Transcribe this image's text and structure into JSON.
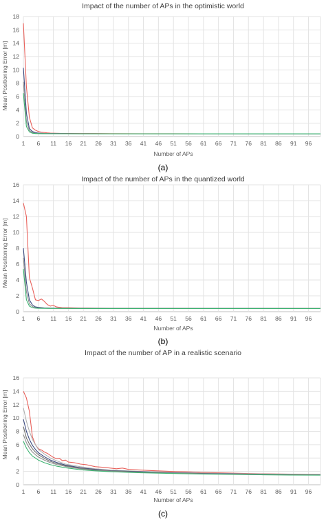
{
  "chart_data": [
    {
      "type": "line",
      "panel": "(a)",
      "title": "Impact of the number of APs in the optimistic world",
      "xlabel": "Number of APs",
      "ylabel": "Mean Positioning Error [m]",
      "xlim": [
        1,
        100
      ],
      "ylim": [
        0,
        18
      ],
      "ytick_step": 2,
      "xticks": [
        "1",
        "6",
        "11",
        "16",
        "21",
        "26",
        "31",
        "36",
        "41",
        "46",
        "51",
        "56",
        "61",
        "66",
        "71",
        "76",
        "81",
        "86",
        "91",
        "96"
      ],
      "grid": true,
      "series": [
        {
          "color": "#e8605a",
          "x": [
            1,
            2,
            3,
            4,
            5,
            6,
            7,
            8,
            9,
            10,
            12,
            14,
            16,
            20,
            25,
            30,
            40,
            50,
            60,
            70,
            80,
            90,
            100
          ],
          "y": [
            17,
            7.5,
            2.9,
            1.3,
            0.95,
            0.75,
            0.65,
            0.6,
            0.55,
            0.52,
            0.49,
            0.47,
            0.46,
            0.45,
            0.44,
            0.43,
            0.42,
            0.42,
            0.41,
            0.41,
            0.41,
            0.41,
            0.41
          ]
        },
        {
          "color": "#3b4a80",
          "x": [
            1,
            2,
            3,
            4,
            5,
            6,
            8,
            10,
            15,
            20,
            30,
            50,
            100
          ],
          "y": [
            10.3,
            3.5,
            1.2,
            0.75,
            0.6,
            0.52,
            0.47,
            0.45,
            0.43,
            0.42,
            0.41,
            0.41,
            0.4
          ]
        },
        {
          "color": "#8c8c8c",
          "x": [
            1,
            2,
            3,
            4,
            5,
            6,
            8,
            10,
            15,
            20,
            30,
            50,
            100
          ],
          "y": [
            8.2,
            2.3,
            0.9,
            0.6,
            0.5,
            0.47,
            0.44,
            0.43,
            0.42,
            0.41,
            0.41,
            0.4,
            0.4
          ]
        },
        {
          "color": "#3cb371",
          "x": [
            1,
            2,
            3,
            4,
            5,
            6,
            8,
            10,
            15,
            20,
            30,
            50,
            100
          ],
          "y": [
            6.5,
            1.5,
            0.7,
            0.5,
            0.45,
            0.43,
            0.42,
            0.41,
            0.41,
            0.4,
            0.4,
            0.4,
            0.4
          ]
        }
      ]
    },
    {
      "type": "line",
      "panel": "(b)",
      "title": "Impact of the number of APs in the quantized world",
      "xlabel": "Number of APs",
      "ylabel": "Mean Positioning Error [m]",
      "xlim": [
        1,
        100
      ],
      "ylim": [
        0,
        16
      ],
      "ytick_step": 2,
      "xticks": [
        "1",
        "6",
        "11",
        "16",
        "21",
        "26",
        "31",
        "36",
        "41",
        "46",
        "51",
        "56",
        "61",
        "66",
        "71",
        "76",
        "81",
        "86",
        "91",
        "96"
      ],
      "grid": true,
      "series": [
        {
          "color": "#e8605a",
          "x": [
            1,
            2,
            3,
            4,
            5,
            6,
            7,
            8,
            9,
            10,
            11,
            12,
            14,
            16,
            20,
            25,
            30,
            40,
            50,
            60,
            70,
            80,
            90,
            100
          ],
          "y": [
            13.7,
            12,
            4.3,
            3,
            1.5,
            1.4,
            1.6,
            1.3,
            0.9,
            0.7,
            0.8,
            0.6,
            0.5,
            0.5,
            0.45,
            0.44,
            0.43,
            0.42,
            0.42,
            0.41,
            0.41,
            0.41,
            0.41,
            0.41
          ]
        },
        {
          "color": "#3b4a80",
          "x": [
            1,
            2,
            3,
            4,
            5,
            6,
            8,
            10,
            15,
            20,
            30,
            50,
            100
          ],
          "y": [
            8,
            3.7,
            1.5,
            0.85,
            0.6,
            0.55,
            0.48,
            0.45,
            0.43,
            0.42,
            0.41,
            0.41,
            0.4
          ]
        },
        {
          "color": "#8c8c8c",
          "x": [
            1,
            2,
            3,
            4,
            5,
            6,
            8,
            10,
            15,
            20,
            30,
            50,
            100
          ],
          "y": [
            6.8,
            2.5,
            1.0,
            0.65,
            0.5,
            0.47,
            0.44,
            0.43,
            0.42,
            0.41,
            0.41,
            0.4,
            0.4
          ]
        },
        {
          "color": "#3cb371",
          "x": [
            1,
            2,
            3,
            4,
            5,
            6,
            8,
            10,
            15,
            20,
            30,
            50,
            100
          ],
          "y": [
            5.4,
            1.5,
            0.7,
            0.5,
            0.45,
            0.43,
            0.42,
            0.41,
            0.41,
            0.4,
            0.4,
            0.4,
            0.4
          ]
        }
      ]
    },
    {
      "type": "line",
      "panel": "(c)",
      "title": "Impact of the number of AP in a realistic scenario",
      "xlabel": "Number of APs",
      "ylabel": "Mean Positioning Error [m]",
      "xlim": [
        1,
        100
      ],
      "ylim": [
        0,
        16
      ],
      "ytick_step": 2,
      "xticks": [
        "1",
        "6",
        "11",
        "16",
        "21",
        "26",
        "31",
        "36",
        "41",
        "46",
        "51",
        "56",
        "61",
        "66",
        "71",
        "76",
        "81",
        "86",
        "91",
        "96"
      ],
      "grid": true,
      "series": [
        {
          "color": "#e8605a",
          "x": [
            1,
            2,
            3,
            4,
            5,
            6,
            7,
            8,
            9,
            10,
            11,
            12,
            13,
            14,
            15,
            16,
            18,
            20,
            22,
            25,
            28,
            30,
            32,
            34,
            36,
            40,
            45,
            50,
            55,
            60,
            70,
            80,
            90,
            100
          ],
          "y": [
            14,
            13,
            11,
            7.2,
            6,
            5.4,
            5.2,
            4.9,
            4.7,
            4.4,
            4.1,
            3.9,
            3.95,
            3.6,
            3.7,
            3.4,
            3.3,
            3.1,
            3,
            2.7,
            2.6,
            2.5,
            2.4,
            2.5,
            2.3,
            2.2,
            2.1,
            2.0,
            1.95,
            1.85,
            1.75,
            1.65,
            1.6,
            1.55
          ]
        },
        {
          "color": "#b0b0b0",
          "x": [
            1,
            2,
            3,
            4,
            5,
            6,
            8,
            10,
            12,
            15,
            20,
            25,
            30,
            40,
            50,
            60,
            70,
            80,
            90,
            100
          ],
          "y": [
            11.5,
            9.5,
            8,
            6.8,
            6,
            5.3,
            4.6,
            4,
            3.6,
            3.1,
            2.7,
            2.4,
            2.2,
            2.0,
            1.85,
            1.75,
            1.68,
            1.62,
            1.57,
            1.52
          ]
        },
        {
          "color": "#3b4a80",
          "x": [
            1,
            2,
            3,
            4,
            5,
            6,
            8,
            10,
            12,
            15,
            20,
            25,
            30,
            40,
            50,
            60,
            70,
            80,
            90,
            100
          ],
          "y": [
            9.8,
            8,
            6.8,
            5.9,
            5.3,
            4.8,
            4.2,
            3.7,
            3.35,
            2.95,
            2.55,
            2.3,
            2.12,
            1.95,
            1.8,
            1.7,
            1.63,
            1.57,
            1.52,
            1.48
          ]
        },
        {
          "color": "#6e6e6e",
          "x": [
            1,
            2,
            3,
            4,
            5,
            6,
            8,
            10,
            12,
            15,
            20,
            25,
            30,
            40,
            50,
            60,
            70,
            80,
            90,
            100
          ],
          "y": [
            8.7,
            7,
            6.1,
            5.4,
            4.9,
            4.5,
            3.95,
            3.5,
            3.2,
            2.85,
            2.47,
            2.24,
            2.07,
            1.9,
            1.76,
            1.67,
            1.6,
            1.55,
            1.5,
            1.46
          ]
        },
        {
          "color": "#8c8c8c",
          "x": [
            1,
            2,
            3,
            4,
            5,
            6,
            8,
            10,
            12,
            15,
            20,
            25,
            30,
            40,
            50,
            60,
            70,
            80,
            90,
            100
          ],
          "y": [
            7.5,
            6.3,
            5.5,
            4.9,
            4.5,
            4.15,
            3.7,
            3.3,
            3.05,
            2.75,
            2.4,
            2.18,
            2.03,
            1.87,
            1.74,
            1.65,
            1.58,
            1.53,
            1.49,
            1.45
          ]
        },
        {
          "color": "#3cb371",
          "x": [
            1,
            2,
            3,
            4,
            5,
            6,
            8,
            10,
            12,
            15,
            20,
            25,
            30,
            40,
            50,
            60,
            70,
            80,
            90,
            100
          ],
          "y": [
            6.5,
            5.5,
            4.8,
            4.3,
            4,
            3.7,
            3.3,
            3.0,
            2.8,
            2.55,
            2.25,
            2.08,
            1.95,
            1.8,
            1.69,
            1.61,
            1.55,
            1.5,
            1.46,
            1.43
          ]
        }
      ]
    }
  ],
  "captions": [
    "(a)",
    "(b)",
    "(c)"
  ]
}
